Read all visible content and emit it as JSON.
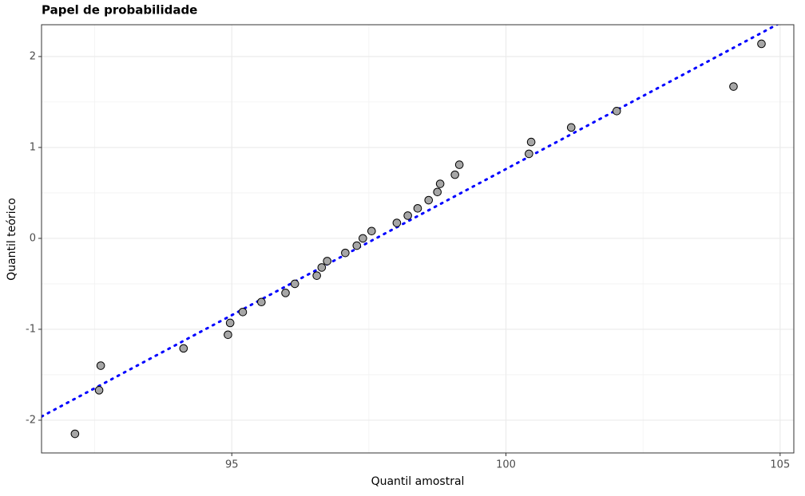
{
  "chart_data": {
    "type": "scatter",
    "title": "Papel de probabilidade",
    "xlabel": "Quantil amostral",
    "ylabel": "Quantil teórico",
    "x": [
      92.14,
      92.58,
      92.61,
      94.12,
      94.93,
      94.97,
      95.2,
      95.54,
      95.98,
      96.15,
      96.55,
      96.64,
      96.74,
      97.07,
      97.28,
      97.39,
      97.55,
      98.01,
      98.21,
      98.39,
      98.59,
      98.75,
      98.8,
      99.07,
      99.15,
      100.42,
      100.46,
      101.19,
      102.02,
      104.15,
      104.66
    ],
    "series": [
      {
        "color": "#a6a6a6",
        "values": [
          -2.15,
          -1.67,
          -1.4,
          -1.21,
          -1.06,
          -0.93,
          -0.81,
          -0.7,
          -0.6,
          -0.5,
          -0.41,
          -0.32,
          -0.25,
          -0.16,
          -0.08,
          0,
          0.08,
          0.17,
          0.25,
          0.33,
          0.42,
          0.51,
          0.6,
          0.7,
          0.81,
          0.93,
          1.06,
          1.22,
          1.4,
          1.67,
          2.14
        ]
      }
    ],
    "reference_line": {
      "color": "#0000ff",
      "x": [
        91.53,
        105.25
      ],
      "y": [
        -1.96,
        2.45
      ]
    },
    "xlim": [
      91.53,
      105.25
    ],
    "ylim": [
      -2.36,
      2.35
    ],
    "xticks": [
      95,
      100,
      105
    ],
    "yticks": [
      -2,
      -1,
      0,
      1,
      2
    ],
    "x_minor_grid": [
      92.5,
      97.5,
      102.5
    ],
    "y_minor_grid": [
      -1.5,
      -0.5,
      0.5,
      1.5
    ],
    "grid": true
  }
}
